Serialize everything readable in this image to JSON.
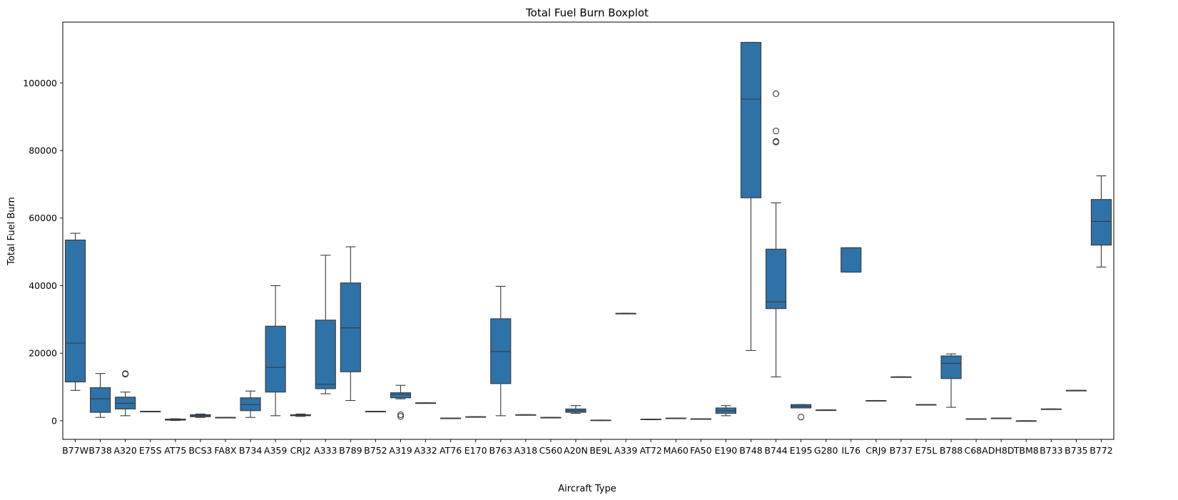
{
  "chart_data": {
    "type": "boxplot",
    "title": "Total Fuel Burn Boxplot",
    "xlabel": "Aircraft Type",
    "ylabel": "Total Fuel Burn",
    "ylim": [
      -5500,
      118000
    ],
    "yticks": [
      0,
      20000,
      40000,
      60000,
      80000,
      100000
    ],
    "box_color": "#2e72a8",
    "line_color": "#3a3a3a",
    "categories": [
      "B77W",
      "B738",
      "A320",
      "E75S",
      "AT75",
      "BCS3",
      "FA8X",
      "B734",
      "A359",
      "CRJ2",
      "A333",
      "B789",
      "B752",
      "A319",
      "A332",
      "AT76",
      "E170",
      "B763",
      "A318",
      "C560",
      "A20N",
      "BE9L",
      "A339",
      "AT72",
      "MA60",
      "FA50",
      "E190",
      "B748",
      "B744",
      "E195",
      "G280",
      "IL76",
      "CRJ9",
      "B737",
      "E75L",
      "B788",
      "C68A",
      "DH8D",
      "TBM8",
      "B733",
      "B735",
      "B772"
    ],
    "boxes": [
      {
        "min": 9000,
        "q1": 11500,
        "median": 23000,
        "q3": 53500,
        "max": 55500,
        "outliers": []
      },
      {
        "min": 1000,
        "q1": 2500,
        "median": 6500,
        "q3": 9800,
        "max": 14000,
        "outliers": []
      },
      {
        "min": 1500,
        "q1": 3500,
        "median": 5200,
        "q3": 7000,
        "max": 8500,
        "outliers": [
          14000,
          13800
        ]
      },
      {
        "min": 2800,
        "q1": 2800,
        "median": 2800,
        "q3": 2800,
        "max": 2800,
        "outliers": []
      },
      {
        "min": 100,
        "q1": 200,
        "median": 400,
        "q3": 500,
        "max": 600,
        "outliers": []
      },
      {
        "min": 1000,
        "q1": 1200,
        "median": 1500,
        "q3": 1800,
        "max": 2000,
        "outliers": []
      },
      {
        "min": 1000,
        "q1": 1000,
        "median": 1000,
        "q3": 1000,
        "max": 1000,
        "outliers": []
      },
      {
        "min": 1000,
        "q1": 3000,
        "median": 4800,
        "q3": 6800,
        "max": 8800,
        "outliers": []
      },
      {
        "min": 1500,
        "q1": 8500,
        "median": 15800,
        "q3": 28000,
        "max": 40000,
        "outliers": []
      },
      {
        "min": 1300,
        "q1": 1500,
        "median": 1700,
        "q3": 1800,
        "max": 2000,
        "outliers": []
      },
      {
        "min": 8000,
        "q1": 9500,
        "median": 10800,
        "q3": 29800,
        "max": 49000,
        "outliers": []
      },
      {
        "min": 6000,
        "q1": 14500,
        "median": 27500,
        "q3": 40800,
        "max": 51500,
        "outliers": []
      },
      {
        "min": 2800,
        "q1": 2800,
        "median": 2800,
        "q3": 2800,
        "max": 2800,
        "outliers": []
      },
      {
        "min": 6500,
        "q1": 6800,
        "median": 7800,
        "q3": 8300,
        "max": 10500,
        "outliers": [
          1800,
          1300
        ]
      },
      {
        "min": 5300,
        "q1": 5300,
        "median": 5300,
        "q3": 5300,
        "max": 5300,
        "outliers": []
      },
      {
        "min": 800,
        "q1": 800,
        "median": 800,
        "q3": 800,
        "max": 800,
        "outliers": []
      },
      {
        "min": 1200,
        "q1": 1200,
        "median": 1200,
        "q3": 1200,
        "max": 1200,
        "outliers": []
      },
      {
        "min": 1500,
        "q1": 11000,
        "median": 20500,
        "q3": 30200,
        "max": 39800,
        "outliers": []
      },
      {
        "min": 1800,
        "q1": 1800,
        "median": 1800,
        "q3": 1800,
        "max": 1800,
        "outliers": []
      },
      {
        "min": 1000,
        "q1": 1000,
        "median": 1000,
        "q3": 1000,
        "max": 1000,
        "outliers": []
      },
      {
        "min": 2200,
        "q1": 2500,
        "median": 3000,
        "q3": 3500,
        "max": 4500,
        "outliers": []
      },
      {
        "min": 200,
        "q1": 200,
        "median": 200,
        "q3": 200,
        "max": 200,
        "outliers": []
      },
      {
        "min": 31800,
        "q1": 31800,
        "median": 31800,
        "q3": 31800,
        "max": 31800,
        "outliers": []
      },
      {
        "min": 300,
        "q1": 400,
        "median": 400,
        "q3": 500,
        "max": 500,
        "outliers": []
      },
      {
        "min": 800,
        "q1": 800,
        "median": 800,
        "q3": 800,
        "max": 800,
        "outliers": []
      },
      {
        "min": 600,
        "q1": 600,
        "median": 600,
        "q3": 600,
        "max": 600,
        "outliers": []
      },
      {
        "min": 1500,
        "q1": 2200,
        "median": 3000,
        "q3": 3800,
        "max": 4500,
        "outliers": []
      },
      {
        "min": 20800,
        "q1": 66000,
        "median": 95200,
        "q3": 112000,
        "max": 112000,
        "outliers": []
      },
      {
        "min": 13000,
        "q1": 33200,
        "median": 35200,
        "q3": 50800,
        "max": 64500,
        "outliers": [
          96800,
          85800,
          82700,
          82500
        ]
      },
      {
        "min": 3800,
        "q1": 3800,
        "median": 4300,
        "q3": 4800,
        "max": 4800,
        "outliers": [
          1100
        ]
      },
      {
        "min": 3200,
        "q1": 3200,
        "median": 3200,
        "q3": 3200,
        "max": 3200,
        "outliers": []
      },
      {
        "min": 44000,
        "q1": 44000,
        "median": 51200,
        "q3": 51200,
        "max": 51200,
        "outliers": []
      },
      {
        "min": 6000,
        "q1": 6000,
        "median": 6000,
        "q3": 6000,
        "max": 6000,
        "outliers": []
      },
      {
        "min": 13000,
        "q1": 13000,
        "median": 13000,
        "q3": 13000,
        "max": 13000,
        "outliers": []
      },
      {
        "min": 4800,
        "q1": 4800,
        "median": 4800,
        "q3": 4800,
        "max": 4800,
        "outliers": []
      },
      {
        "min": 4000,
        "q1": 12500,
        "median": 17000,
        "q3": 19200,
        "max": 19800,
        "outliers": []
      },
      {
        "min": 600,
        "q1": 600,
        "median": 600,
        "q3": 600,
        "max": 600,
        "outliers": []
      },
      {
        "min": 800,
        "q1": 800,
        "median": 800,
        "q3": 800,
        "max": 800,
        "outliers": []
      },
      {
        "min": 0,
        "q1": 0,
        "median": 0,
        "q3": 0,
        "max": 0,
        "outliers": []
      },
      {
        "min": 3500,
        "q1": 3500,
        "median": 3500,
        "q3": 3500,
        "max": 3500,
        "outliers": []
      },
      {
        "min": 9000,
        "q1": 9000,
        "median": 9000,
        "q3": 9000,
        "max": 9000,
        "outliers": []
      },
      {
        "min": 45500,
        "q1": 52000,
        "median": 59000,
        "q3": 65500,
        "max": 72500,
        "outliers": []
      }
    ]
  }
}
